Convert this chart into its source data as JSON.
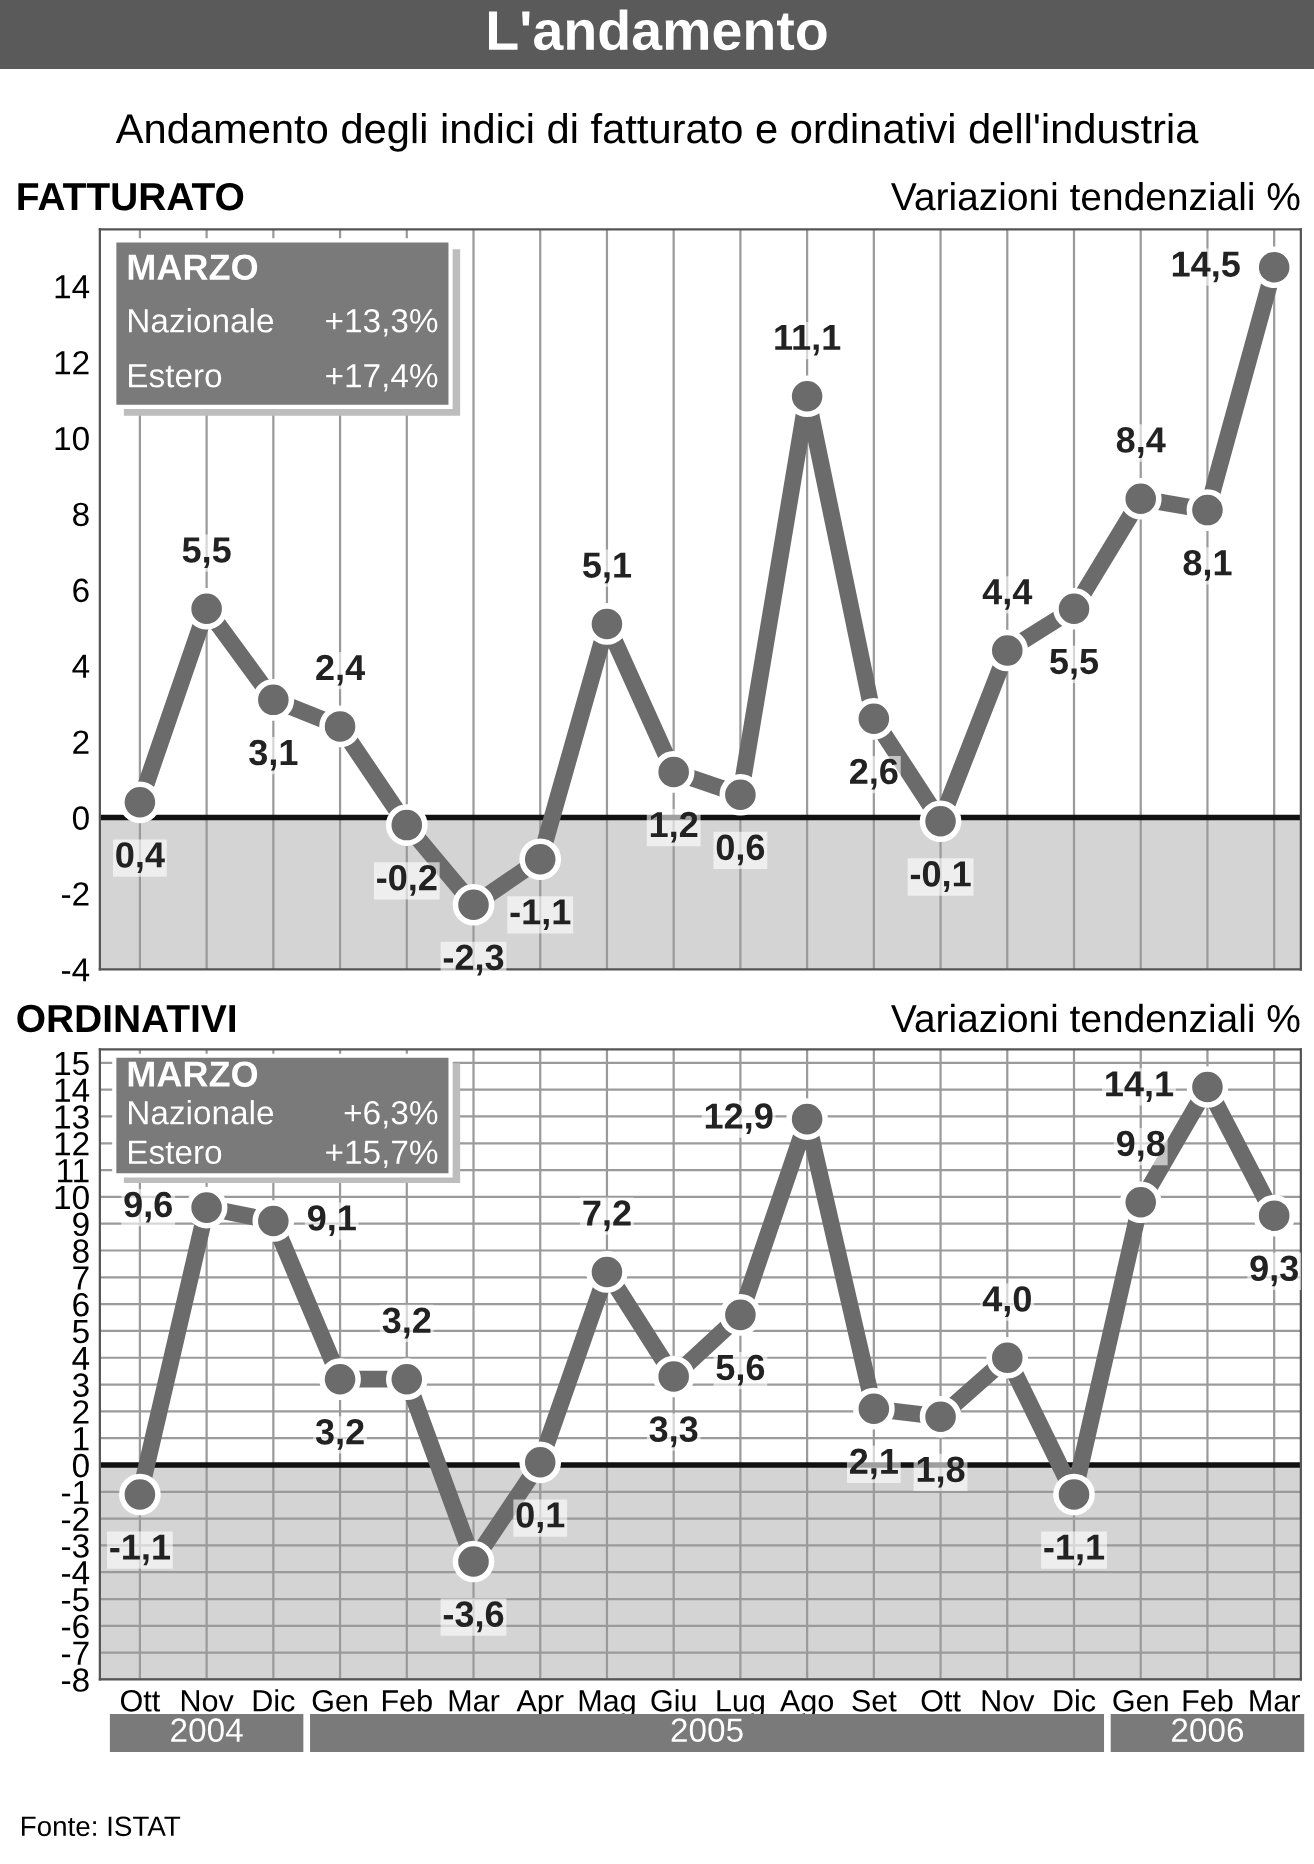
{
  "chart_data": [
    {
      "type": "line",
      "title": "FATTURATO",
      "subtitle": "Variazioni tendenziali %",
      "annotations": [
        "L'andamento",
        "Andamento degli indici di fatturato e ordinativi dell'industria",
        "MARZO",
        "Nazionale",
        "+13,3%",
        "Estero",
        "+17,4%"
      ],
      "categories": [
        null,
        null,
        null,
        null,
        null,
        null,
        null,
        null,
        null,
        null,
        null,
        null,
        null,
        null,
        null,
        null,
        null,
        null
      ],
      "series": [
        {
          "color": "#6b6b6b",
          "values": [
            0.4,
            5.5,
            3.1,
            2.4,
            -0.2,
            -2.3,
            -1.1,
            5.1,
            1.2,
            0.6,
            11.1,
            2.6,
            -0.1,
            4.4,
            5.5,
            8.4,
            8.1,
            14.5
          ],
          "value_labels": [
            "0,4",
            "5,5",
            "3,1",
            "2,4",
            "-0,2",
            "-2,3",
            "-1,1",
            "5,1",
            "1,2",
            "0,6",
            "11,1",
            "2,6",
            "-0,1",
            "4,4",
            "5,5",
            "8,4",
            "8,1",
            "14,5"
          ]
        }
      ],
      "ylim": [
        -4,
        15.5
      ],
      "yticks": [
        -4,
        -2,
        0,
        2,
        4,
        6,
        8,
        10,
        12,
        14
      ],
      "bands": [
        {
          "axis": "y",
          "from": -4,
          "to": 0,
          "color": "#d4d4d4"
        }
      ],
      "ref_lines": [
        {
          "axis": "y",
          "value": 0,
          "color": "#111111"
        }
      ],
      "grid": "x",
      "tick_labels": "y",
      "marker": "circle",
      "line_style": "solid",
      "legend": false
    },
    {
      "type": "line",
      "title": "ORDINATIVI",
      "subtitle": "Variazioni tendenziali %",
      "annotations": [
        "MARZO",
        "Nazionale",
        "+6,3%",
        "Estero",
        "+15,7%",
        "2004",
        "2005",
        "2006",
        "Fonte: ISTAT"
      ],
      "categories": [
        "Ott",
        "Nov",
        "Dic",
        "Gen",
        "Feb",
        "Mar",
        "Apr",
        "Mag",
        "Giu",
        "Lug",
        "Ago",
        "Set",
        "Ott",
        "Nov",
        "Dic",
        "Gen",
        "Feb",
        "Mar"
      ],
      "series": [
        {
          "color": "#6b6b6b",
          "values": [
            -1.1,
            9.6,
            9.1,
            3.2,
            3.2,
            -3.6,
            0.1,
            7.2,
            3.3,
            5.6,
            12.9,
            2.1,
            1.8,
            4.0,
            -1.1,
            9.8,
            14.1,
            9.3
          ],
          "value_labels": [
            "-1,1",
            "9,6",
            "9,1",
            "3,2",
            "3,2",
            "-3,6",
            "0,1",
            "7,2",
            "3,3",
            "5,6",
            "12,9",
            "2,1",
            "1,8",
            "4,0",
            "-1,1",
            "9,8",
            "14,1",
            "9,3"
          ]
        }
      ],
      "ylim": [
        -8,
        15.5
      ],
      "yticks": [
        -8,
        -7,
        -6,
        -5,
        -4,
        -3,
        -2,
        -1,
        0,
        1,
        2,
        3,
        4,
        5,
        6,
        7,
        8,
        9,
        10,
        11,
        12,
        13,
        14,
        15
      ],
      "bands": [
        {
          "axis": "y",
          "from": -8,
          "to": 0,
          "color": "#d4d4d4"
        }
      ],
      "ref_lines": [
        {
          "axis": "y",
          "value": 0,
          "color": "#111111"
        }
      ],
      "grid": true,
      "marker": "circle",
      "line_style": "solid",
      "legend": false
    }
  ]
}
